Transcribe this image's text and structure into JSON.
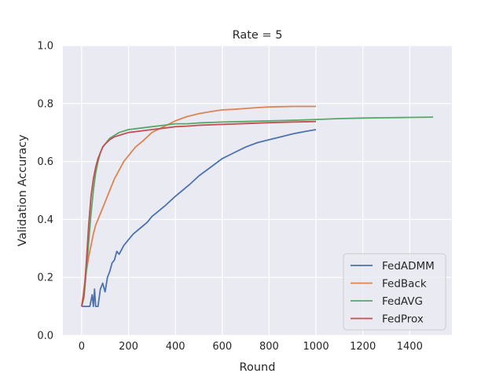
{
  "chart_data": {
    "type": "line",
    "title": "Rate = 5",
    "xlabel": "Round",
    "ylabel": "Validation Accuracy",
    "xlim": [
      -80,
      1580
    ],
    "ylim": [
      0.0,
      1.0
    ],
    "xticks": [
      "0",
      "200",
      "400",
      "600",
      "800",
      "1000",
      "1200",
      "1400"
    ],
    "xtick_values": [
      0,
      200,
      400,
      600,
      800,
      1000,
      1200,
      1400
    ],
    "yticks": [
      "0.0",
      "0.2",
      "0.4",
      "0.6",
      "0.8",
      "1.0"
    ],
    "ytick_values": [
      0.0,
      0.2,
      0.4,
      0.6,
      0.8,
      1.0
    ],
    "grid": true,
    "background": "#eaeaf2",
    "legend_position": "lower-right",
    "series": [
      {
        "name": "FedADMM",
        "color": "#4c72b0",
        "x": [
          0,
          20,
          35,
          45,
          50,
          55,
          60,
          70,
          80,
          90,
          100,
          110,
          120,
          130,
          140,
          150,
          160,
          180,
          200,
          220,
          250,
          280,
          300,
          330,
          360,
          400,
          430,
          460,
          500,
          550,
          600,
          650,
          700,
          750,
          800,
          850,
          900,
          950,
          1000
        ],
        "y": [
          0.1,
          0.1,
          0.1,
          0.14,
          0.1,
          0.16,
          0.1,
          0.1,
          0.16,
          0.18,
          0.15,
          0.2,
          0.22,
          0.25,
          0.26,
          0.29,
          0.28,
          0.31,
          0.33,
          0.35,
          0.37,
          0.39,
          0.41,
          0.43,
          0.45,
          0.48,
          0.5,
          0.52,
          0.55,
          0.58,
          0.61,
          0.63,
          0.65,
          0.665,
          0.675,
          0.685,
          0.695,
          0.703,
          0.71
        ]
      },
      {
        "name": "FedBack",
        "color": "#dd8452",
        "x": [
          0,
          10,
          20,
          30,
          40,
          50,
          60,
          70,
          80,
          100,
          120,
          140,
          160,
          180,
          200,
          230,
          260,
          300,
          350,
          400,
          450,
          500,
          550,
          600,
          650,
          700,
          750,
          800,
          850,
          900,
          950,
          1000
        ],
        "y": [
          0.1,
          0.16,
          0.22,
          0.27,
          0.31,
          0.35,
          0.38,
          0.4,
          0.42,
          0.46,
          0.5,
          0.54,
          0.57,
          0.6,
          0.62,
          0.65,
          0.67,
          0.7,
          0.72,
          0.74,
          0.755,
          0.765,
          0.772,
          0.778,
          0.78,
          0.783,
          0.786,
          0.788,
          0.789,
          0.79,
          0.79,
          0.79
        ]
      },
      {
        "name": "FedAVG",
        "color": "#55a868",
        "x": [
          0,
          10,
          20,
          30,
          40,
          50,
          60,
          70,
          80,
          90,
          100,
          120,
          140,
          160,
          180,
          200,
          250,
          300,
          350,
          400,
          450,
          500,
          600,
          700,
          800,
          900,
          1000,
          1100,
          1200,
          1300,
          1400,
          1500
        ],
        "y": [
          0.1,
          0.13,
          0.22,
          0.32,
          0.42,
          0.5,
          0.56,
          0.6,
          0.63,
          0.65,
          0.66,
          0.68,
          0.69,
          0.7,
          0.705,
          0.71,
          0.715,
          0.72,
          0.725,
          0.73,
          0.73,
          0.733,
          0.736,
          0.738,
          0.74,
          0.742,
          0.745,
          0.748,
          0.75,
          0.751,
          0.752,
          0.753
        ]
      },
      {
        "name": "FedProx",
        "color": "#c44e52",
        "x": [
          0,
          10,
          20,
          30,
          40,
          50,
          60,
          70,
          80,
          90,
          100,
          120,
          140,
          160,
          180,
          200,
          250,
          300,
          350,
          400,
          450,
          500,
          600,
          700,
          800,
          900,
          1000
        ],
        "y": [
          0.1,
          0.14,
          0.25,
          0.38,
          0.48,
          0.54,
          0.58,
          0.61,
          0.63,
          0.65,
          0.66,
          0.675,
          0.685,
          0.69,
          0.695,
          0.7,
          0.705,
          0.71,
          0.715,
          0.72,
          0.722,
          0.725,
          0.728,
          0.731,
          0.734,
          0.736,
          0.738
        ]
      }
    ]
  }
}
